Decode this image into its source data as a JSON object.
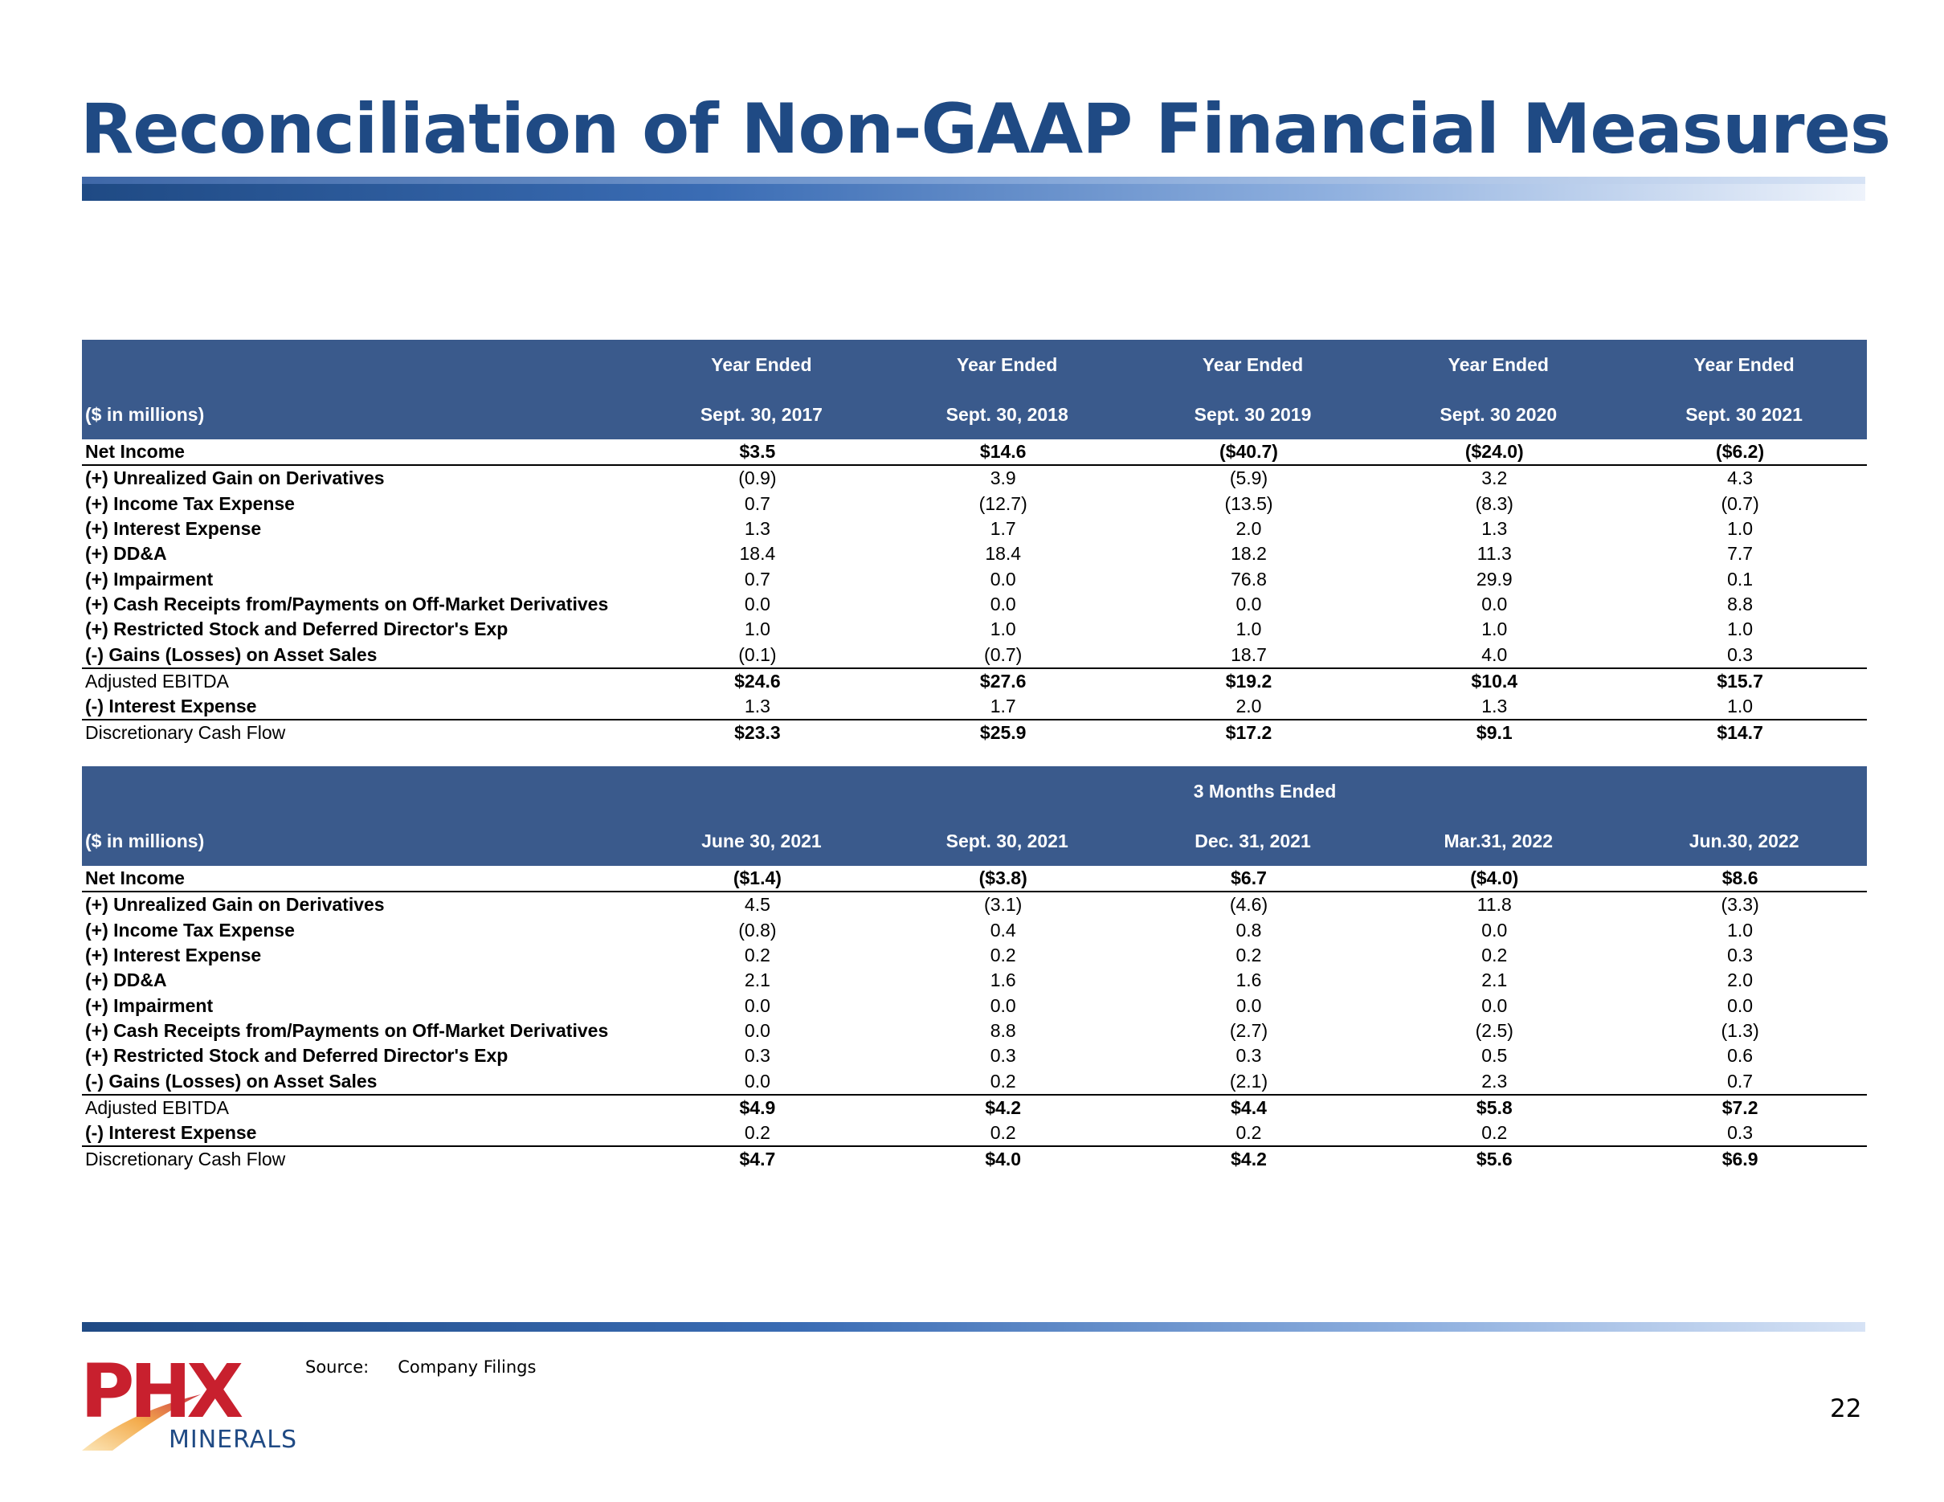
{
  "title": "Reconciliation of Non-GAAP Financial Measures",
  "colors": {
    "title": "#1f4a84",
    "header_bg": "#3a5a8c",
    "logo_red": "#c8202e"
  },
  "table1": {
    "unit_label": "($ in millions)",
    "columns": [
      {
        "top": "Year Ended",
        "bottom": "Sept. 30, 2017"
      },
      {
        "top": "Year Ended",
        "bottom": "Sept. 30, 2018"
      },
      {
        "top": "Year Ended",
        "bottom": "Sept. 30 2019"
      },
      {
        "top": "Year Ended",
        "bottom": "Sept. 30 2020"
      },
      {
        "top": "Year Ended",
        "bottom": "Sept. 30 2021"
      }
    ],
    "rows": [
      {
        "label": "Net Income",
        "values": [
          "$3.5",
          "$14.6",
          "($40.7)",
          "($24.0)",
          "($6.2)"
        ]
      },
      {
        "label": "(+) Unrealized Gain on Derivatives",
        "values": [
          "(0.9)",
          "3.9",
          "(5.9)",
          "3.2",
          "4.3"
        ]
      },
      {
        "label": "(+) Income Tax Expense",
        "values": [
          "0.7",
          "(12.7)",
          "(13.5)",
          "(8.3)",
          "(0.7)"
        ]
      },
      {
        "label": "(+) Interest Expense",
        "values": [
          "1.3",
          "1.7",
          "2.0",
          "1.3",
          "1.0"
        ]
      },
      {
        "label": "(+) DD&A",
        "values": [
          "18.4",
          "18.4",
          "18.2",
          "11.3",
          "7.7"
        ]
      },
      {
        "label": "(+) Impairment",
        "values": [
          "0.7",
          "0.0",
          "76.8",
          "29.9",
          "0.1"
        ]
      },
      {
        "label": "(+) Cash Receipts from/Payments on Off-Market Derivatives",
        "values": [
          "0.0",
          "0.0",
          "0.0",
          "0.0",
          "8.8"
        ]
      },
      {
        "label": "(+) Restricted Stock and Deferred Director's Exp",
        "values": [
          "1.0",
          "1.0",
          "1.0",
          "1.0",
          "1.0"
        ]
      },
      {
        "label": "(-) Gains (Losses) on Asset Sales",
        "values": [
          "(0.1)",
          "(0.7)",
          "18.7",
          "4.0",
          "0.3"
        ]
      },
      {
        "label": "Adjusted EBITDA",
        "values": [
          "$24.6",
          "$27.6",
          "$19.2",
          "$10.4",
          "$15.7"
        ]
      },
      {
        "label": "(-) Interest Expense",
        "values": [
          "1.3",
          "1.7",
          "2.0",
          "1.3",
          "1.0"
        ]
      },
      {
        "label": "Discretionary Cash Flow",
        "values": [
          "$23.3",
          "$25.9",
          "$17.2",
          "$9.1",
          "$14.7"
        ]
      }
    ]
  },
  "table2": {
    "unit_label": "($ in millions)",
    "group_header": "3 Months Ended",
    "columns": [
      "June 30, 2021",
      "Sept. 30, 2021",
      "Dec. 31, 2021",
      "Mar.31, 2022",
      "Jun.30, 2022"
    ],
    "rows": [
      {
        "label": "Net Income",
        "values": [
          "($1.4)",
          "($3.8)",
          "$6.7",
          "($4.0)",
          "$8.6"
        ]
      },
      {
        "label": "(+) Unrealized Gain on Derivatives",
        "values": [
          "4.5",
          "(3.1)",
          "(4.6)",
          "11.8",
          "(3.3)"
        ]
      },
      {
        "label": "(+) Income Tax Expense",
        "values": [
          "(0.8)",
          "0.4",
          "0.8",
          "0.0",
          "1.0"
        ]
      },
      {
        "label": "(+) Interest Expense",
        "values": [
          "0.2",
          "0.2",
          "0.2",
          "0.2",
          "0.3"
        ]
      },
      {
        "label": "(+) DD&A",
        "values": [
          "2.1",
          "1.6",
          "1.6",
          "2.1",
          "2.0"
        ]
      },
      {
        "label": "(+) Impairment",
        "values": [
          "0.0",
          "0.0",
          "0.0",
          "0.0",
          "0.0"
        ]
      },
      {
        "label": "(+) Cash Receipts from/Payments on Off-Market Derivatives",
        "values": [
          "0.0",
          "8.8",
          "(2.7)",
          "(2.5)",
          "(1.3)"
        ]
      },
      {
        "label": "(+) Restricted Stock and Deferred Director's Exp",
        "values": [
          "0.3",
          "0.3",
          "0.3",
          "0.5",
          "0.6"
        ]
      },
      {
        "label": "(-) Gains (Losses) on Asset Sales",
        "values": [
          "0.0",
          "0.2",
          "(2.1)",
          "2.3",
          "0.7"
        ]
      },
      {
        "label": "Adjusted EBITDA",
        "values": [
          "$4.9",
          "$4.2",
          "$4.4",
          "$5.8",
          "$7.2"
        ]
      },
      {
        "label": "(-) Interest Expense",
        "values": [
          "0.2",
          "0.2",
          "0.2",
          "0.2",
          "0.3"
        ]
      },
      {
        "label": "Discretionary Cash Flow",
        "values": [
          "$4.7",
          "$4.0",
          "$4.2",
          "$5.6",
          "$6.9"
        ]
      }
    ]
  },
  "footer": {
    "source_label": "Source:",
    "source_value": "Company Filings",
    "page_number": "22",
    "logo_text": "PHX",
    "logo_subtext": "MINERALS"
  }
}
